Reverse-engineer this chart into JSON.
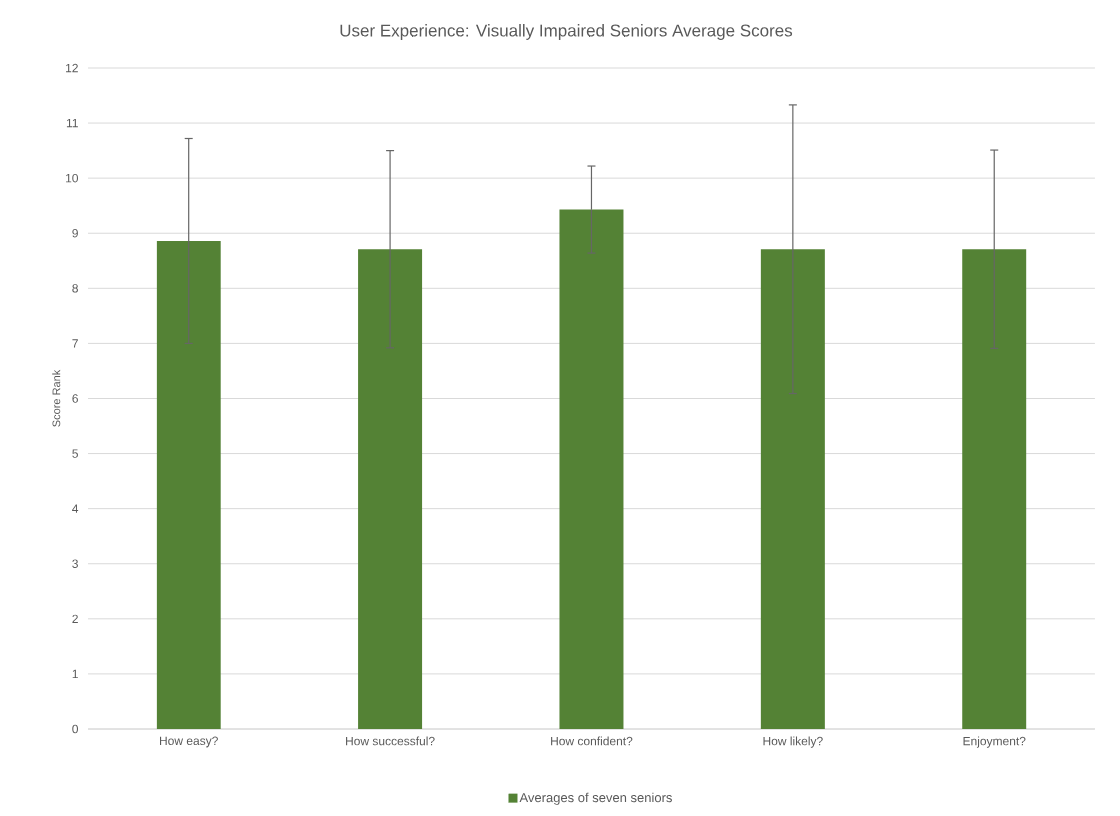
{
  "chart_data": {
    "type": "bar",
    "title": "User Experience: Visually Impaired Seniors Average Scores",
    "ylabel": "Score Rank",
    "categories": [
      "How easy?",
      "How successful?",
      "How confident?",
      "How likely?",
      "Enjoyment?"
    ],
    "series": [
      {
        "name": "Averages of seven seniors",
        "color": "#548235",
        "values": [
          8.86,
          8.71,
          9.43,
          8.71,
          8.71
        ],
        "errors": [
          1.86,
          1.79,
          0.79,
          2.62,
          1.8
        ]
      }
    ],
    "ylim": [
      0,
      12
    ],
    "yticks": [
      0,
      1,
      2,
      3,
      4,
      5,
      6,
      7,
      8,
      9,
      10,
      11,
      12
    ],
    "grid": "y",
    "legend": "bottom"
  }
}
